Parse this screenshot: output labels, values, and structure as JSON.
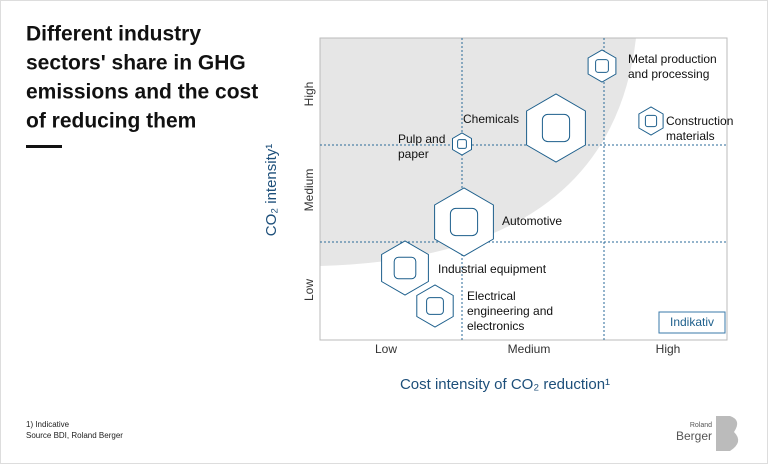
{
  "title": [
    "Different industry",
    "sectors' share in GHG",
    "emissions and the cost",
    "of reducing them"
  ],
  "y_axis": {
    "label": "CO₂ intensity¹",
    "ticks": [
      "Low",
      "Medium",
      "High"
    ]
  },
  "x_axis": {
    "label": "Cost intensity of CO₂ reduction¹",
    "ticks": [
      "Low",
      "Medium",
      "High"
    ]
  },
  "nodes": [
    {
      "label": [
        "Metal production",
        "and processing"
      ]
    },
    {
      "label": [
        "Construction",
        "materials"
      ]
    },
    {
      "label": [
        "Chemicals"
      ]
    },
    {
      "label": [
        "Pulp and",
        "paper"
      ]
    },
    {
      "label": [
        "Automotive"
      ]
    },
    {
      "label": [
        "Industrial equipment"
      ]
    },
    {
      "label": [
        "Electrical",
        "engineering and",
        "electronics"
      ]
    }
  ],
  "badge": "Indikativ",
  "footnote": "1) Indicative",
  "source": "Source BDI, Roland Berger",
  "logo": {
    "small": "Roland",
    "large": "Berger"
  }
}
